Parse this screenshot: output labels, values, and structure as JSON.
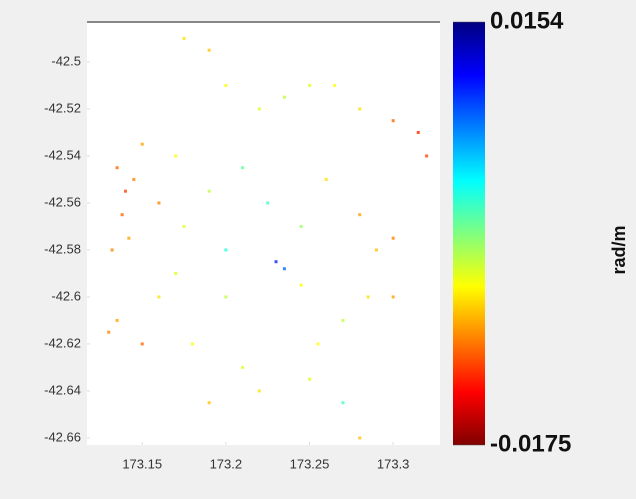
{
  "chart_data": {
    "type": "scatter",
    "colorbar_label": "rad/m",
    "x": [
      173.135,
      173.14,
      173.145,
      173.138,
      173.142,
      173.132,
      173.15,
      173.13,
      173.135,
      173.175,
      173.19,
      173.2,
      173.22,
      173.235,
      173.25,
      173.265,
      173.28,
      173.3,
      173.315,
      173.32,
      173.17,
      173.19,
      173.21,
      173.225,
      173.245,
      173.26,
      173.28,
      173.29,
      173.3,
      173.23,
      173.235,
      173.2,
      173.17,
      173.16,
      173.18,
      173.21,
      173.22,
      173.25,
      173.255,
      173.27,
      173.285,
      173.3,
      173.27,
      173.28,
      173.2,
      173.245,
      173.16,
      173.175,
      173.15,
      173.19
    ],
    "y": [
      -42.545,
      -42.555,
      -42.55,
      -42.565,
      -42.575,
      -42.58,
      -42.535,
      -42.615,
      -42.61,
      -42.49,
      -42.495,
      -42.51,
      -42.52,
      -42.515,
      -42.51,
      -42.51,
      -42.52,
      -42.525,
      -42.53,
      -42.54,
      -42.54,
      -42.555,
      -42.545,
      -42.56,
      -42.57,
      -42.55,
      -42.565,
      -42.58,
      -42.575,
      -42.585,
      -42.588,
      -42.58,
      -42.59,
      -42.6,
      -42.62,
      -42.63,
      -42.64,
      -42.635,
      -42.62,
      -42.61,
      -42.6,
      -42.6,
      -42.645,
      -42.66,
      -42.6,
      -42.595,
      -42.56,
      -42.57,
      -42.62,
      -42.645
    ],
    "values": [
      0.008,
      0.009,
      0.007,
      0.008,
      0.006,
      0.007,
      0.006,
      0.007,
      0.006,
      0.004,
      0.005,
      0.003,
      0.002,
      0.001,
      0.002,
      0.003,
      0.004,
      0.008,
      0.01,
      0.009,
      0.003,
      0.001,
      -0.002,
      -0.003,
      0.0,
      0.004,
      0.006,
      0.005,
      0.007,
      -0.012,
      -0.01,
      -0.004,
      0.002,
      0.004,
      0.003,
      0.002,
      0.004,
      0.002,
      0.003,
      0.001,
      0.004,
      0.006,
      -0.003,
      0.005,
      0.001,
      0.003,
      0.007,
      0.002,
      0.008,
      0.005
    ],
    "xlim": [
      173.117,
      173.328
    ],
    "ylim": [
      -42.663,
      -42.483
    ],
    "xticks": [
      173.15,
      173.2,
      173.25,
      173.3
    ],
    "yticks": [
      -42.5,
      -42.52,
      -42.54,
      -42.56,
      -42.58,
      -42.6,
      -42.62,
      -42.64,
      -42.66
    ],
    "clim": [
      -0.0175,
      0.0154
    ],
    "cticks": [
      -0.0175,
      0.0154
    ],
    "colormap": "jet"
  }
}
